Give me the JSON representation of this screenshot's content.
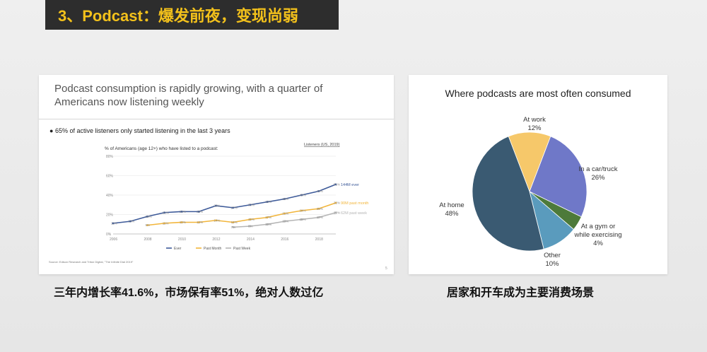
{
  "slide_title": "3、Podcast：爆发前夜，变现尚弱",
  "left_panel": {
    "headline_line1": "Podcast consumption is rapidly growing, with a quarter of",
    "headline_line2": "Americans now listening weekly",
    "bullet": "65% of active listeners only started listening in the last 3 years",
    "source": "Source: Edison Research and Triton Digital, \"The Infinite Dial 2019\"",
    "page_number": "5",
    "caption": "三年内增长率41.6%，市场保有率51%，绝对人数过亿"
  },
  "right_panel": {
    "caption": "居家和开车成为主要消费场景"
  },
  "chart_data": [
    {
      "type": "line",
      "title": "% of Americans (age 12+) who have listed to a podcast:",
      "side_heading": "Listeners (US, 2019)",
      "x": [
        2006,
        2007,
        2008,
        2009,
        2010,
        2011,
        2012,
        2013,
        2014,
        2015,
        2016,
        2017,
        2018,
        2019
      ],
      "x_tick_labels": [
        "2006",
        "2008",
        "2010",
        "2012",
        "2014",
        "2016",
        "2018"
      ],
      "ylim": [
        0,
        80
      ],
      "y_ticks": [
        0,
        20,
        40,
        60,
        80
      ],
      "series": [
        {
          "name": "Ever",
          "color": "#3d5a99",
          "end_label": "144M ever",
          "values": [
            11,
            13,
            18,
            22,
            23,
            23,
            29,
            27,
            30,
            33,
            36,
            40,
            44,
            51
          ]
        },
        {
          "name": "Past Month",
          "color": "#f2b53a",
          "end_label": "90M past month",
          "values": [
            null,
            null,
            9,
            11,
            12,
            12,
            14,
            12,
            15,
            17,
            21,
            24,
            26,
            32
          ]
        },
        {
          "name": "Past Week",
          "color": "#b5b5b5",
          "end_label": "62M past week",
          "values": [
            null,
            null,
            null,
            null,
            null,
            null,
            null,
            7,
            8,
            10,
            13,
            15,
            17,
            22
          ]
        }
      ],
      "legend_position": "bottom",
      "grid": true
    },
    {
      "type": "pie",
      "title": "Where podcasts are most often consumed",
      "slices": [
        {
          "label": "At work",
          "value": 12,
          "display": "12%",
          "color": "#f6c86a"
        },
        {
          "label": "In a car/truck",
          "value": 26,
          "display": "26%",
          "color": "#6f78c8"
        },
        {
          "label": "At a gym or while exercising",
          "label_line1": "At a gym or",
          "label_line2": "while exercising",
          "value": 4,
          "display": "4%",
          "color": "#4d7a3a"
        },
        {
          "label": "Other",
          "value": 10,
          "display": "10%",
          "color": "#5a9bbd"
        },
        {
          "label": "At home",
          "value": 48,
          "display": "48%",
          "color": "#3a5a72"
        }
      ]
    }
  ]
}
